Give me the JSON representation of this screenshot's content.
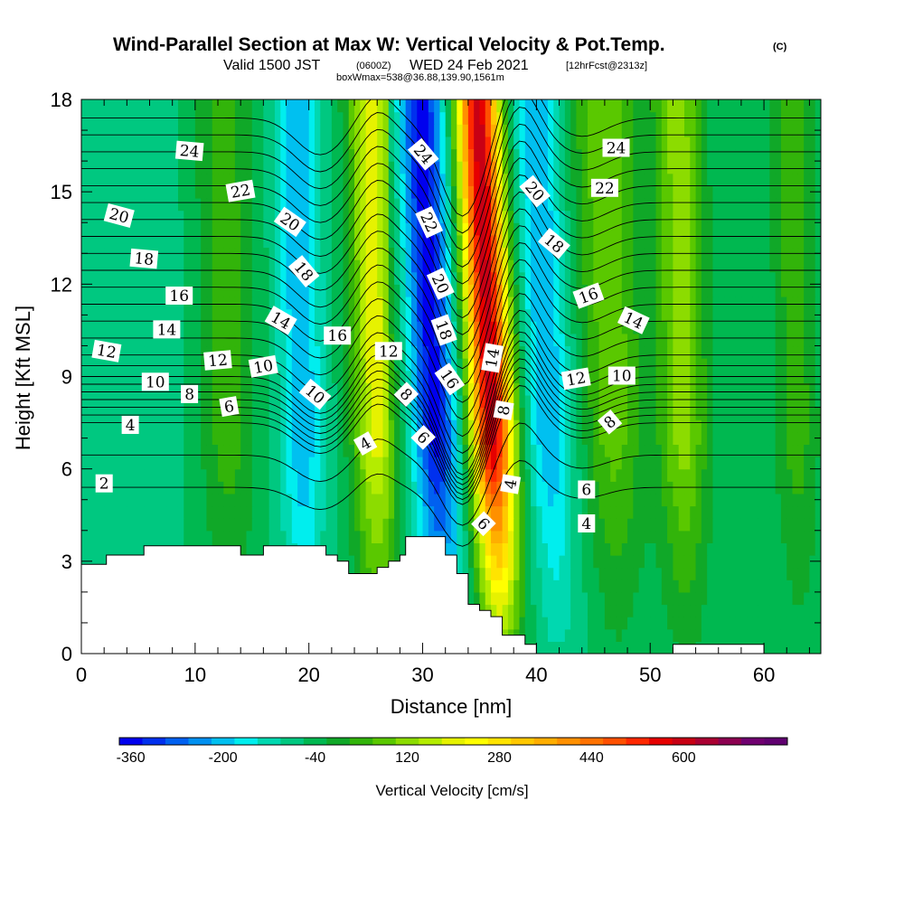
{
  "chart_data": {
    "type": "heatmap",
    "title": "Wind-Parallel Section at Max W: Vertical Velocity & Pot.Temp.",
    "title_unit": "(C)",
    "subtitle": {
      "valid_prefix": "Valid 1500 JST",
      "utc": "(0600Z)",
      "date": "WED 24 Feb 2021",
      "forecast": "[12hrFcst@2313z]",
      "box_info": "boxWmax=538@36.88,139.90,1561m"
    },
    "xlabel": "Distance [nm]",
    "ylabel": "Height [Kft MSL]",
    "xlim": [
      0,
      65
    ],
    "ylim": [
      0,
      18
    ],
    "x_ticks": [
      0,
      10,
      20,
      30,
      40,
      50,
      60
    ],
    "y_ticks": [
      0,
      3,
      6,
      9,
      12,
      15,
      18
    ],
    "grid": false,
    "colorbar": {
      "title": "Vertical Velocity [cm/s]",
      "levels_start": -380,
      "level_step": 40,
      "tick_values": [
        -360,
        -200,
        -40,
        120,
        280,
        440,
        600
      ],
      "colors": [
        "#0000ee",
        "#0030ee",
        "#0060f0",
        "#0090f0",
        "#00c0f0",
        "#00eeee",
        "#00d8b0",
        "#00c880",
        "#00b850",
        "#10a828",
        "#32b40a",
        "#5ac800",
        "#8cdc00",
        "#b4ec00",
        "#e6f200",
        "#ffff00",
        "#ffe400",
        "#ffc800",
        "#ffae00",
        "#ff9000",
        "#ff7200",
        "#ff5000",
        "#ff2800",
        "#e60000",
        "#c80014",
        "#aa0032",
        "#8c0050",
        "#700070",
        "#600070"
      ]
    },
    "vertical_velocity_bands": [
      {
        "x_center": 2,
        "width": 2.2,
        "value": -60
      },
      {
        "x_center": 7,
        "width": 2.5,
        "value": -80
      },
      {
        "x_center": 13,
        "width": 2.5,
        "value": 40
      },
      {
        "x_center": 19.5,
        "width": 1.8,
        "value": -220
      },
      {
        "x_center": 26,
        "width": 2.0,
        "value": 200
      },
      {
        "x_center": 31.5,
        "width": 2.0,
        "value": -360
      },
      {
        "x_center": 36.5,
        "width": 1.9,
        "value": 600
      },
      {
        "x_center": 41.5,
        "width": 2.0,
        "value": -220
      },
      {
        "x_center": 47,
        "width": 2.5,
        "value": 80
      },
      {
        "x_center": 53,
        "width": 2.2,
        "value": 120
      },
      {
        "x_center": 58.5,
        "width": 2.5,
        "value": -60
      },
      {
        "x_center": 63,
        "width": 2.0,
        "value": 40
      }
    ],
    "terrain": [
      [
        0,
        2.9
      ],
      [
        2.2,
        2.9
      ],
      [
        2.2,
        3.2
      ],
      [
        5.5,
        3.2
      ],
      [
        5.5,
        3.5
      ],
      [
        14,
        3.5
      ],
      [
        14,
        3.2
      ],
      [
        16,
        3.2
      ],
      [
        16,
        3.5
      ],
      [
        21.5,
        3.5
      ],
      [
        21.5,
        3.2
      ],
      [
        22.5,
        3.2
      ],
      [
        22.5,
        3.0
      ],
      [
        23.5,
        3.0
      ],
      [
        23.5,
        2.6
      ],
      [
        26,
        2.6
      ],
      [
        26,
        2.8
      ],
      [
        27,
        2.8
      ],
      [
        27,
        3.0
      ],
      [
        28,
        3.0
      ],
      [
        28,
        3.2
      ],
      [
        28.5,
        3.2
      ],
      [
        28.5,
        3.8
      ],
      [
        32,
        3.8
      ],
      [
        32,
        3.2
      ],
      [
        33,
        3.2
      ],
      [
        33,
        2.6
      ],
      [
        34,
        2.6
      ],
      [
        34,
        1.6
      ],
      [
        35,
        1.6
      ],
      [
        35,
        1.4
      ],
      [
        36,
        1.4
      ],
      [
        36,
        1.2
      ],
      [
        37,
        1.2
      ],
      [
        37,
        0.6
      ],
      [
        39,
        0.6
      ],
      [
        39,
        0.3
      ],
      [
        40,
        0.3
      ],
      [
        40,
        0.0
      ],
      [
        52,
        0.0
      ],
      [
        52,
        0.3
      ],
      [
        60,
        0.3
      ],
      [
        60,
        0.0
      ],
      [
        65,
        0.0
      ]
    ],
    "theta_contours": {
      "levels": [
        2,
        3,
        4,
        5,
        6,
        7,
        8,
        9,
        10,
        11,
        12,
        13,
        14,
        15,
        16,
        17,
        18,
        19,
        20,
        21,
        22,
        23,
        24,
        25,
        26
      ],
      "base_heights_kft": [
        5.4,
        6.45,
        7.5,
        7.75,
        8.0,
        8.25,
        8.5,
        8.75,
        9.0,
        9.35,
        9.7,
        10.25,
        10.8,
        11.35,
        11.9,
        12.45,
        13.0,
        13.55,
        14.1,
        14.65,
        15.2,
        15.75,
        16.3,
        16.85,
        17.4
      ]
    },
    "contour_labels": [
      {
        "text": "24",
        "x": 9.5,
        "y": 16.3,
        "angle": 5
      },
      {
        "text": "22",
        "x": 14,
        "y": 15.0,
        "angle": -10
      },
      {
        "text": "20",
        "x": 3.3,
        "y": 14.2,
        "angle": 15
      },
      {
        "text": "18",
        "x": 5.5,
        "y": 12.8,
        "angle": 5
      },
      {
        "text": "16",
        "x": 8.6,
        "y": 11.6,
        "angle": 0
      },
      {
        "text": "14",
        "x": 7.5,
        "y": 10.5,
        "angle": 0
      },
      {
        "text": "12",
        "x": 2.2,
        "y": 9.8,
        "angle": 10
      },
      {
        "text": "12",
        "x": 12,
        "y": 9.5,
        "angle": -5
      },
      {
        "text": "10",
        "x": 6.5,
        "y": 8.8,
        "angle": 0
      },
      {
        "text": "10",
        "x": 16,
        "y": 9.3,
        "angle": -10
      },
      {
        "text": "8",
        "x": 9.5,
        "y": 8.4,
        "angle": 0
      },
      {
        "text": "6",
        "x": 13,
        "y": 8.0,
        "angle": -10
      },
      {
        "text": "4",
        "x": 4.3,
        "y": 7.4,
        "angle": 0
      },
      {
        "text": "2",
        "x": 2,
        "y": 5.5,
        "angle": 0
      },
      {
        "text": "20",
        "x": 18.3,
        "y": 14.0,
        "angle": 35
      },
      {
        "text": "18",
        "x": 19.5,
        "y": 12.4,
        "angle": 50
      },
      {
        "text": "14",
        "x": 17.5,
        "y": 10.8,
        "angle": 30
      },
      {
        "text": "16",
        "x": 22.5,
        "y": 10.3,
        "angle": 0
      },
      {
        "text": "10",
        "x": 20.5,
        "y": 8.4,
        "angle": 40
      },
      {
        "text": "12",
        "x": 27,
        "y": 9.8,
        "angle": 0
      },
      {
        "text": "4",
        "x": 25,
        "y": 6.8,
        "angle": -30
      },
      {
        "text": "8",
        "x": 28.5,
        "y": 8.4,
        "angle": 45
      },
      {
        "text": "6",
        "x": 30,
        "y": 7.0,
        "angle": 45
      },
      {
        "text": "24",
        "x": 30,
        "y": 16.2,
        "angle": 50
      },
      {
        "text": "22",
        "x": 30.5,
        "y": 14.0,
        "angle": 65
      },
      {
        "text": "20",
        "x": 31.5,
        "y": 12.0,
        "angle": 65
      },
      {
        "text": "18",
        "x": 31.8,
        "y": 10.5,
        "angle": 70
      },
      {
        "text": "16",
        "x": 32.3,
        "y": 8.9,
        "angle": 55
      },
      {
        "text": "14",
        "x": 36.2,
        "y": 9.6,
        "angle": -80
      },
      {
        "text": "8",
        "x": 37.2,
        "y": 7.9,
        "angle": -80
      },
      {
        "text": "4",
        "x": 37.8,
        "y": 5.5,
        "angle": -80
      },
      {
        "text": "6",
        "x": 35.3,
        "y": 4.2,
        "angle": 45
      },
      {
        "text": "20",
        "x": 39.8,
        "y": 15.0,
        "angle": 50
      },
      {
        "text": "18",
        "x": 41.5,
        "y": 13.3,
        "angle": 40
      },
      {
        "text": "16",
        "x": 44.6,
        "y": 11.6,
        "angle": -20
      },
      {
        "text": "14",
        "x": 48.5,
        "y": 10.8,
        "angle": 25
      },
      {
        "text": "12",
        "x": 43.5,
        "y": 8.9,
        "angle": -10
      },
      {
        "text": "10",
        "x": 47.5,
        "y": 9.0,
        "angle": 0
      },
      {
        "text": "8",
        "x": 46.5,
        "y": 7.5,
        "angle": -40
      },
      {
        "text": "6",
        "x": 44.4,
        "y": 5.3,
        "angle": 0
      },
      {
        "text": "4",
        "x": 44.4,
        "y": 4.2,
        "angle": 0
      },
      {
        "text": "24",
        "x": 47,
        "y": 16.4,
        "angle": 0
      },
      {
        "text": "22",
        "x": 46,
        "y": 15.1,
        "angle": 0
      }
    ]
  }
}
